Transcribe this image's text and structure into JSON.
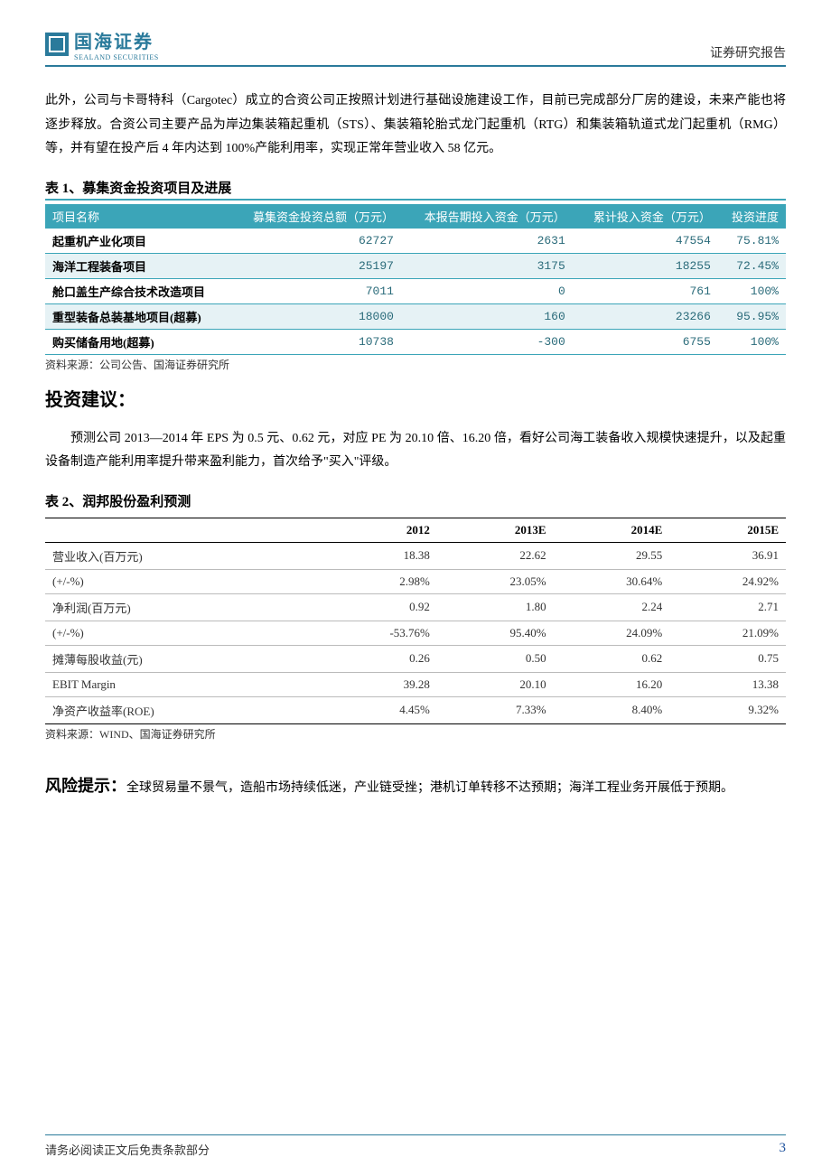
{
  "header": {
    "company_cn": "国海证券",
    "company_en": "SEALAND SECURITIES",
    "report_type": "证券研究报告"
  },
  "intro_paragraph": "此外，公司与卡哥特科（Cargotec）成立的合资公司正按照计划进行基础设施建设工作，目前已完成部分厂房的建设，未来产能也将逐步释放。合资公司主要产品为岸边集装箱起重机（STS）、集装箱轮胎式龙门起重机（RTG）和集装箱轨道式龙门起重机（RMG）等，并有望在投产后 4 年内达到 100%产能利用率，实现正常年营业收入 58 亿元。",
  "table1": {
    "title": "表 1、募集资金投资项目及进展",
    "columns": [
      "项目名称",
      "募集资金投资总额（万元）",
      "本报告期投入资金（万元）",
      "累计投入资金（万元）",
      "投资进度"
    ],
    "rows": [
      {
        "name": "起重机产业化项目",
        "total": "62727",
        "period": "2631",
        "cum": "47554",
        "prog": "75.81%"
      },
      {
        "name": "海洋工程装备项目",
        "total": "25197",
        "period": "3175",
        "cum": "18255",
        "prog": "72.45%"
      },
      {
        "name": "舱口盖生产综合技术改造项目",
        "total": "7011",
        "period": "0",
        "cum": "761",
        "prog": "100%"
      },
      {
        "name": "重型装备总装基地项目(超募)",
        "total": "18000",
        "period": "160",
        "cum": "23266",
        "prog": "95.95%"
      },
      {
        "name": "购买储备用地(超募)",
        "total": "10738",
        "period": "-300",
        "cum": "6755",
        "prog": "100%"
      }
    ],
    "source": "资料来源：公司公告、国海证券研究所"
  },
  "advice": {
    "heading": "投资建议：",
    "body": "预测公司 2013—2014 年 EPS 为 0.5 元、0.62 元，对应 PE 为 20.10 倍、16.20 倍，看好公司海工装备收入规模快速提升，以及起重设备制造产能利用率提升带来盈利能力，首次给予\"买入\"评级。"
  },
  "table2": {
    "title": "表 2、润邦股份盈利预测",
    "columns": [
      "",
      "2012",
      "2013E",
      "2014E",
      "2015E"
    ],
    "rows": [
      [
        "营业收入(百万元)",
        "18.38",
        "22.62",
        "29.55",
        "36.91"
      ],
      [
        "(+/-%)",
        "2.98%",
        "23.05%",
        "30.64%",
        "24.92%"
      ],
      [
        "净利润(百万元)",
        "0.92",
        "1.80",
        "2.24",
        "2.71"
      ],
      [
        "(+/-%)",
        "-53.76%",
        "95.40%",
        "24.09%",
        "21.09%"
      ],
      [
        "摊薄每股收益(元)",
        "0.26",
        "0.50",
        "0.62",
        "0.75"
      ],
      [
        "EBIT Margin",
        "39.28",
        "20.10",
        "16.20",
        "13.38"
      ],
      [
        "净资产收益率(ROE)",
        "4.45%",
        "7.33%",
        "8.40%",
        "9.32%"
      ]
    ],
    "source": "资料来源：WIND、国海证券研究所"
  },
  "risk": {
    "label": "风险提示：",
    "body": "全球贸易量不景气，造船市场持续低迷，产业链受挫；港机订单转移不达预期；海洋工程业务开展低于预期。"
  },
  "footer": {
    "disclaimer": "请务必阅读正文后免责条款部分",
    "page": "3"
  },
  "colors": {
    "brand": "#2a7a9b",
    "table_header_bg": "#3ba5b8",
    "table_row_alt": "#e6f2f5",
    "page_num": "#1a4f9c"
  }
}
